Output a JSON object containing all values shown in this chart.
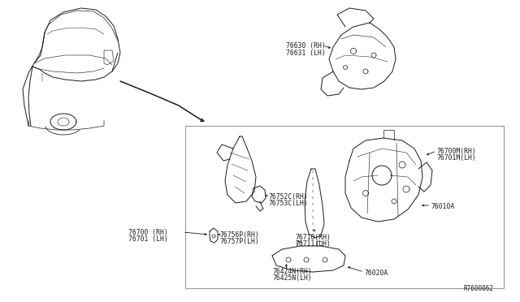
{
  "bg_color": "#ffffff",
  "line_color": "#1a1a1a",
  "box_color": "#999999",
  "ref_code": "R7600062",
  "labels": {
    "76630": "76630 (RH)",
    "76631": "76631 (LH)",
    "76700": "76700 (RH)",
    "76701": "76701 (LH)",
    "76752C": "76752C(RH)",
    "76753C": "76753C(LH)",
    "76756P": "76756P(RH)",
    "76757P": "76757P(LH)",
    "76710": "76710(RH)",
    "76711": "76711(LH)",
    "76424N": "76424N(RH)",
    "76425N": "76425N(LH)",
    "76700M": "76700M(RH)",
    "76701M": "76701M(LH)",
    "76010A": "76010A",
    "76020A": "76020A"
  },
  "font_size": 5.8,
  "lw": 0.7
}
